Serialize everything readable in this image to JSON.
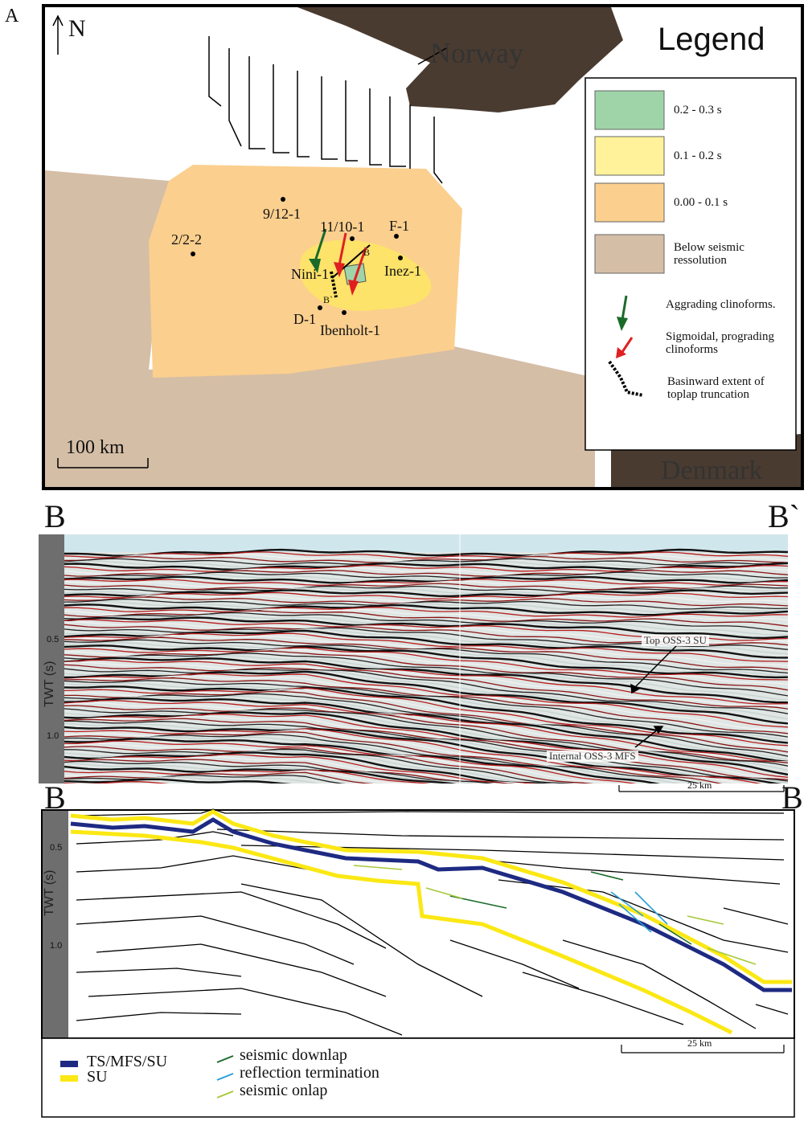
{
  "panel_a": {
    "label": "A",
    "north": "N",
    "legend_title": "Legend",
    "countries": [
      "Norway",
      "Denmark"
    ],
    "legend": [
      "0.2 - 0.3 s",
      "0.1 - 0.2 s",
      "0.00 - 0.1 s",
      "Below seismic ressolution",
      "Aggrading clinoforms.",
      "Sigmoidal, prograding clinoforms",
      "Basinward extent of toplap truncation"
    ],
    "wells": [
      "9/12-1",
      "11/10-1",
      "F-1",
      "2/2-2",
      "Nini-1",
      "Inez-1",
      "D-1",
      "Ibenholt-1"
    ],
    "section_ends": [
      "B",
      "B`"
    ],
    "scale": "100 km"
  },
  "panel_b": {
    "start": "B",
    "end": "B`",
    "axis_label": "TWT (s)",
    "ticks": [
      "0.5",
      "1.0"
    ],
    "annotations": [
      "Top OSS-3 SU",
      "Internal OSS-3 MFS"
    ],
    "scale": "25 km"
  },
  "panel_c": {
    "start": "B",
    "end": "B",
    "axis_label": "TWT (s)",
    "ticks": [
      "0.5",
      "1.0"
    ],
    "scale": "25 km",
    "legend": [
      "TS/MFS/SU",
      "SU",
      "seismic downlap",
      "reflection termination",
      "seismic onlap"
    ]
  }
}
